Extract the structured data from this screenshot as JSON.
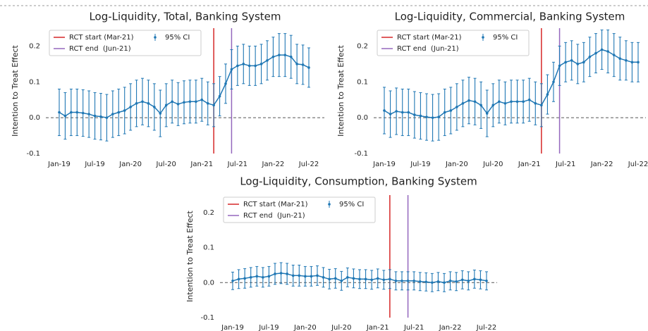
{
  "chart_data": [
    {
      "type": "errorbar",
      "title": "Log-Liquidity, Total, Banking System",
      "y_label": "Intention to Treat Effect",
      "categories": [
        "Jan-19",
        null,
        null,
        null,
        null,
        null,
        "Jul-19",
        null,
        null,
        null,
        null,
        null,
        "Jan-20",
        null,
        null,
        null,
        null,
        null,
        "Jul-20",
        null,
        null,
        null,
        null,
        null,
        "Jan-21",
        null,
        null,
        null,
        null,
        null,
        "Jul-21",
        null,
        null,
        null,
        null,
        null,
        "Jan-22",
        null,
        null,
        null,
        null,
        null,
        "Jul-22"
      ],
      "values": [
        0.015,
        0.005,
        0.015,
        0.015,
        0.013,
        0.01,
        0.005,
        0.003,
        0.0,
        0.01,
        0.015,
        0.02,
        0.03,
        0.04,
        0.045,
        0.04,
        0.03,
        0.012,
        0.035,
        0.045,
        0.038,
        0.043,
        0.045,
        0.045,
        0.05,
        0.04,
        0.035,
        0.06,
        0.095,
        0.135,
        0.145,
        0.15,
        0.145,
        0.145,
        0.15,
        0.16,
        0.17,
        0.175,
        0.175,
        0.17,
        0.15,
        0.148,
        0.14
      ],
      "errors": [
        0.065,
        0.065,
        0.065,
        0.065,
        0.065,
        0.065,
        0.065,
        0.065,
        0.065,
        0.065,
        0.065,
        0.065,
        0.065,
        0.065,
        0.065,
        0.065,
        0.065,
        0.065,
        0.06,
        0.06,
        0.06,
        0.06,
        0.06,
        0.06,
        0.06,
        0.06,
        0.06,
        0.055,
        0.055,
        0.055,
        0.055,
        0.055,
        0.055,
        0.055,
        0.055,
        0.055,
        0.055,
        0.06,
        0.06,
        0.06,
        0.055,
        0.055,
        0.055
      ],
      "color": "#1f77b4",
      "ci_label": "95% CI",
      "vlines": [
        {
          "label": "RCT start (Mar-21)",
          "color": "#d62728",
          "index": 26
        },
        {
          "label": "RCT end  (Jun-21)",
          "color": "#9467bd",
          "index": 29
        }
      ],
      "hline": 0,
      "ylim": [
        -0.1,
        0.25
      ],
      "yticks": [
        {
          "value": -0.1,
          "label": "-0.1"
        },
        {
          "value": 0,
          "label": "0.0"
        },
        0.1,
        0.2
      ]
    },
    {
      "type": "errorbar",
      "title": "Log-Liquidity, Commercial, Banking System",
      "y_label": "Intention to Treat Effect",
      "categories": [
        "Jan-19",
        null,
        null,
        null,
        null,
        null,
        "Jul-19",
        null,
        null,
        null,
        null,
        null,
        "Jan-20",
        null,
        null,
        null,
        null,
        null,
        "Jul-20",
        null,
        null,
        null,
        null,
        null,
        "Jan-21",
        null,
        null,
        null,
        null,
        null,
        "Jul-21",
        null,
        null,
        null,
        null,
        null,
        "Jan-22",
        null,
        null,
        null,
        null,
        null,
        "Jul-22"
      ],
      "values": [
        0.02,
        0.01,
        0.018,
        0.015,
        0.015,
        0.008,
        0.005,
        0.002,
        0.0,
        0.002,
        0.015,
        0.02,
        0.03,
        0.04,
        0.048,
        0.045,
        0.035,
        0.012,
        0.035,
        0.045,
        0.04,
        0.045,
        0.045,
        0.045,
        0.05,
        0.04,
        0.035,
        0.065,
        0.1,
        0.145,
        0.155,
        0.16,
        0.15,
        0.155,
        0.17,
        0.18,
        0.19,
        0.185,
        0.175,
        0.165,
        0.16,
        0.155,
        0.155
      ],
      "errors": [
        0.065,
        0.065,
        0.065,
        0.065,
        0.065,
        0.065,
        0.065,
        0.065,
        0.065,
        0.065,
        0.065,
        0.065,
        0.065,
        0.065,
        0.065,
        0.065,
        0.065,
        0.065,
        0.06,
        0.06,
        0.06,
        0.06,
        0.06,
        0.06,
        0.06,
        0.06,
        0.06,
        0.055,
        0.055,
        0.055,
        0.055,
        0.055,
        0.055,
        0.055,
        0.055,
        0.055,
        0.055,
        0.06,
        0.06,
        0.06,
        0.055,
        0.055,
        0.055
      ],
      "color": "#1f77b4",
      "ci_label": "95% CI",
      "vlines": [
        {
          "label": "RCT start (Mar-21)",
          "color": "#d62728",
          "index": 26
        },
        {
          "label": "RCT end  (Jun-21)",
          "color": "#9467bd",
          "index": 29
        }
      ],
      "hline": 0,
      "ylim": [
        -0.1,
        0.25
      ],
      "yticks": [
        {
          "value": -0.1,
          "label": "-0.1"
        },
        {
          "value": 0,
          "label": "0.0"
        },
        0.1,
        0.2
      ]
    },
    {
      "type": "errorbar",
      "title": "Log-Liquidity, Consumption, Banking System",
      "y_label": "Intention to Treat Effect",
      "categories": [
        "Jan-19",
        null,
        null,
        null,
        null,
        null,
        "Jul-19",
        null,
        null,
        null,
        null,
        null,
        "Jan-20",
        null,
        null,
        null,
        null,
        null,
        "Jul-20",
        null,
        null,
        null,
        null,
        null,
        "Jan-21",
        null,
        null,
        null,
        null,
        null,
        "Jul-21",
        null,
        null,
        null,
        null,
        null,
        "Jan-22",
        null,
        null,
        null,
        null,
        null,
        "Jul-22"
      ],
      "values": [
        0.005,
        0.01,
        0.012,
        0.015,
        0.018,
        0.015,
        0.018,
        0.025,
        0.027,
        0.025,
        0.02,
        0.02,
        0.018,
        0.018,
        0.02,
        0.015,
        0.01,
        0.012,
        0.005,
        0.015,
        0.012,
        0.01,
        0.01,
        0.008,
        0.012,
        0.008,
        0.01,
        0.005,
        0.005,
        0.005,
        0.005,
        0.003,
        0.002,
        0.0,
        0.003,
        0.0,
        0.005,
        0.003,
        0.008,
        0.005,
        0.01,
        0.008,
        0.005
      ],
      "errors": [
        0.025,
        0.027,
        0.028,
        0.028,
        0.028,
        0.028,
        0.028,
        0.03,
        0.03,
        0.03,
        0.03,
        0.03,
        0.028,
        0.028,
        0.028,
        0.028,
        0.028,
        0.028,
        0.027,
        0.027,
        0.027,
        0.027,
        0.027,
        0.027,
        0.027,
        0.027,
        0.027,
        0.026,
        0.026,
        0.026,
        0.026,
        0.026,
        0.026,
        0.026,
        0.026,
        0.026,
        0.026,
        0.026,
        0.026,
        0.026,
        0.026,
        0.026,
        0.026
      ],
      "color": "#1f77b4",
      "ci_label": "95% CI",
      "vlines": [
        {
          "label": "RCT start (Mar-21)",
          "color": "#d62728",
          "index": 26
        },
        {
          "label": "RCT end  (Jun-21)",
          "color": "#9467bd",
          "index": 29
        }
      ],
      "hline": 0,
      "ylim": [
        -0.1,
        0.25
      ],
      "yticks": [
        {
          "value": -0.1,
          "label": "-0.1"
        },
        {
          "value": 0,
          "label": "0.0"
        },
        0.1,
        0.2
      ]
    }
  ]
}
